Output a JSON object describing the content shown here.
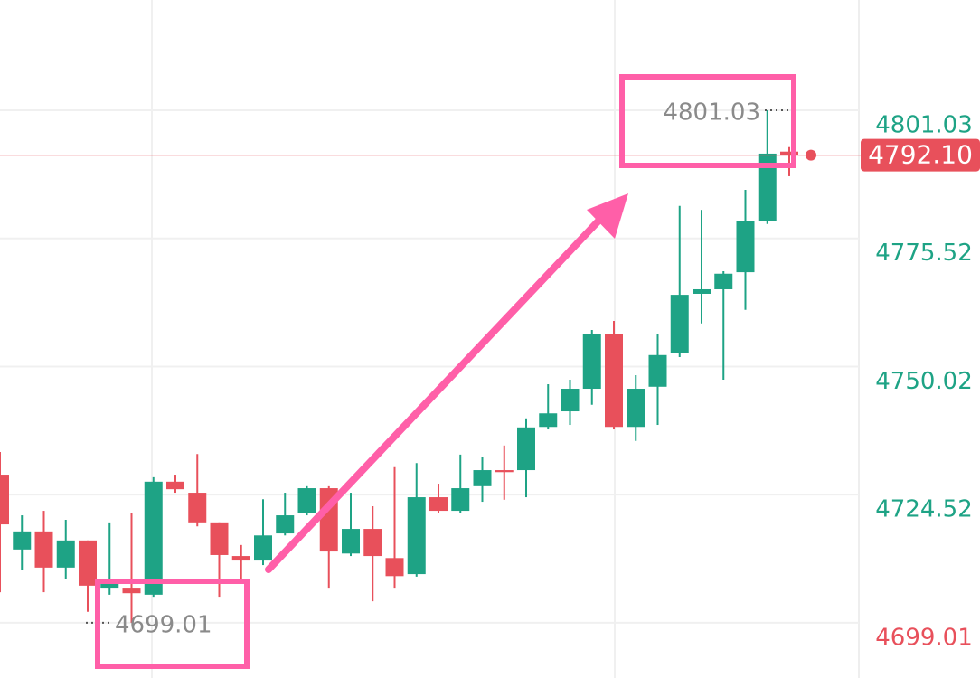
{
  "chart_data": {
    "type": "candlestick",
    "ylim": [
      4688.02,
      4822.98
    ],
    "yticks": [
      4801.03,
      4775.52,
      4750.02,
      4724.52,
      4699.01
    ],
    "ytick_colors": [
      "#1ea385",
      "#1ea385",
      "#1ea385",
      "#1ea385",
      "#e8505b"
    ],
    "grid": true,
    "up_color": "#1ea385",
    "down_color": "#e8505b",
    "last_price": {
      "value": 4792.1,
      "label": "4792.10"
    },
    "high_marker": 4801.03,
    "low_marker": 4699.01,
    "ohlc": [
      [
        4728.5,
        4733.0,
        4705.1,
        4718.6
      ],
      [
        4713.6,
        4720.4,
        4709.6,
        4717.2
      ],
      [
        4717.2,
        4721.3,
        4705.1,
        4710.0
      ],
      [
        4710.0,
        4719.5,
        4707.8,
        4715.4
      ],
      [
        4715.4,
        4715.4,
        4701.2,
        4706.4
      ],
      [
        4706.0,
        4719.0,
        4704.6,
        4706.9
      ],
      [
        4706.0,
        4720.8,
        4699.01,
        4704.9
      ],
      [
        4704.6,
        4728.0,
        4704.2,
        4727.1
      ],
      [
        4727.1,
        4728.5,
        4724.9,
        4725.6
      ],
      [
        4724.9,
        4732.6,
        4718.2,
        4719.0
      ],
      [
        4719.0,
        4719.0,
        4704.2,
        4712.5
      ],
      [
        4712.3,
        4714.5,
        4707.8,
        4711.4
      ],
      [
        4711.4,
        4723.6,
        4710.5,
        4716.4
      ],
      [
        4716.8,
        4724.9,
        4716.4,
        4720.4
      ],
      [
        4720.8,
        4726.2,
        4720.4,
        4725.8
      ],
      [
        4725.8,
        4726.2,
        4706.0,
        4713.2
      ],
      [
        4712.8,
        4724.9,
        4712.3,
        4717.7
      ],
      [
        4717.7,
        4722.2,
        4703.3,
        4712.3
      ],
      [
        4711.9,
        4730.0,
        4706.0,
        4708.3
      ],
      [
        4708.7,
        4730.8,
        4708.2,
        4724.0
      ],
      [
        4724.0,
        4726.7,
        4720.8,
        4721.3
      ],
      [
        4721.3,
        4732.5,
        4720.8,
        4725.8
      ],
      [
        4726.2,
        4732.1,
        4723.1,
        4729.4
      ],
      [
        4729.4,
        4734.3,
        4723.5,
        4729.0
      ],
      [
        4729.4,
        4739.7,
        4724.0,
        4737.9
      ],
      [
        4738.0,
        4746.5,
        4737.5,
        4740.7
      ],
      [
        4741.1,
        4747.4,
        4738.4,
        4745.6
      ],
      [
        4745.6,
        4757.3,
        4742.4,
        4756.4
      ],
      [
        4756.4,
        4759.1,
        4737.5,
        4738.0
      ],
      [
        4738.0,
        4748.3,
        4735.2,
        4745.6
      ],
      [
        4746.0,
        4756.4,
        4738.4,
        4752.3
      ],
      [
        4752.8,
        4782.0,
        4751.9,
        4764.3
      ],
      [
        4764.5,
        4781.2,
        4758.6,
        4765.4
      ],
      [
        4765.4,
        4769.0,
        4747.4,
        4768.5
      ],
      [
        4768.8,
        4785.2,
        4761.3,
        4778.9
      ],
      [
        4778.9,
        4801.03,
        4778.4,
        4792.4
      ],
      [
        4792.8,
        4793.7,
        4787.9,
        4792.1
      ]
    ]
  }
}
